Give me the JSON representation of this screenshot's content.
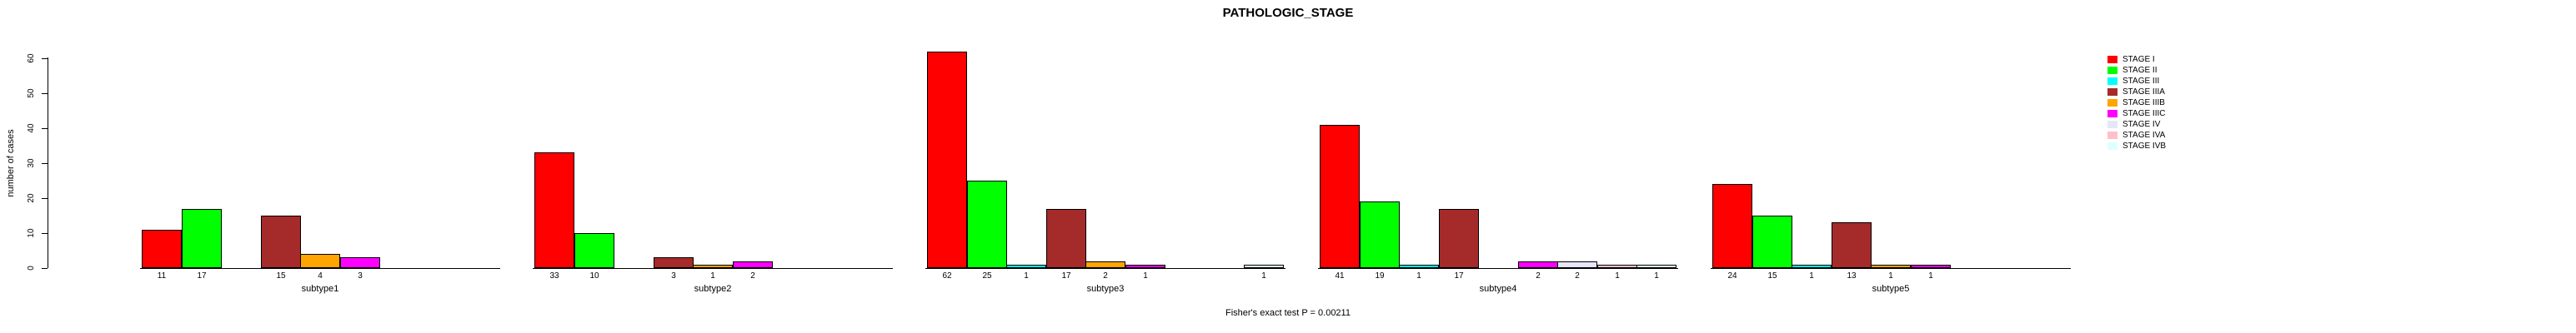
{
  "title": "PATHOLOGIC_STAGE",
  "footer": "Fisher's exact test P = 0.00211",
  "y_axis": {
    "label": "number of cases",
    "ticks": [
      0,
      10,
      20,
      30,
      40,
      50,
      60
    ]
  },
  "chart_data": {
    "type": "bar",
    "title": "PATHOLOGIC_STAGE",
    "ylabel": "number of cases",
    "ylim": [
      0,
      60
    ],
    "yticks": [
      0,
      10,
      20,
      30,
      40,
      50,
      60
    ],
    "grid": false,
    "legend_position": "right",
    "annotation": "Fisher's exact test P = 0.00211",
    "bar_label_rule": "count shown under each nonzero bar",
    "categories": [
      "subtype1",
      "subtype2",
      "subtype3",
      "subtype4",
      "subtype5"
    ],
    "series": [
      {
        "name": "STAGE I",
        "color": "#FF0000",
        "values": [
          11,
          33,
          62,
          41,
          24
        ]
      },
      {
        "name": "STAGE II",
        "color": "#00FF00",
        "values": [
          17,
          10,
          25,
          19,
          15
        ]
      },
      {
        "name": "STAGE III",
        "color": "#00FFFF",
        "values": [
          0,
          0,
          1,
          1,
          1
        ]
      },
      {
        "name": "STAGE IIIA",
        "color": "#A52A2A",
        "values": [
          15,
          3,
          17,
          17,
          13
        ]
      },
      {
        "name": "STAGE IIIB",
        "color": "#FFA500",
        "values": [
          4,
          1,
          2,
          0,
          1
        ]
      },
      {
        "name": "STAGE IIIC",
        "color": "#FF00FF",
        "values": [
          3,
          2,
          1,
          2,
          1
        ]
      },
      {
        "name": "STAGE IV",
        "color": "#E6E6FA",
        "values": [
          0,
          0,
          0,
          2,
          0
        ]
      },
      {
        "name": "STAGE IVA",
        "color": "#FFC0CB",
        "values": [
          0,
          0,
          0,
          1,
          0
        ]
      },
      {
        "name": "STAGE IVB",
        "color": "#E0FFFF",
        "values": [
          0,
          0,
          1,
          1,
          0
        ]
      }
    ]
  }
}
